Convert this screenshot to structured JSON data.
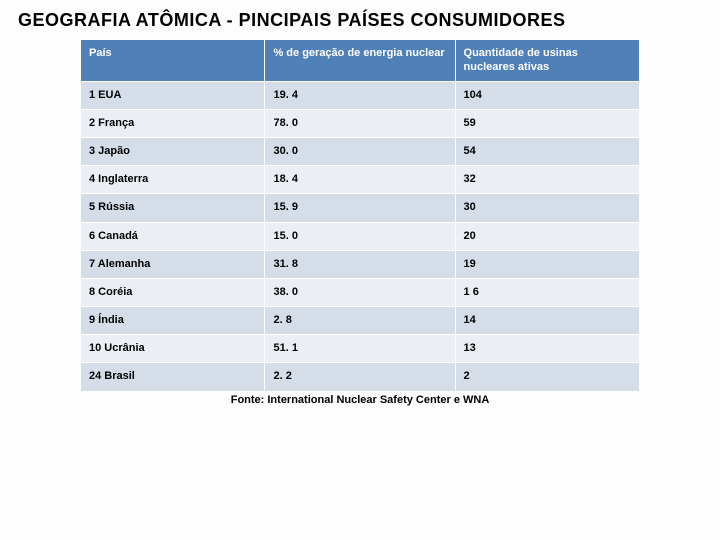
{
  "title": "GEOGRAFIA  ATÔMICA  -  PINCIPAIS  PAÍSES  CONSUMIDORES",
  "table": {
    "columns": [
      "País",
      "% de geração de energia nuclear",
      "Quantidade de usinas nucleares ativas"
    ],
    "rows": [
      [
        "1 EUA",
        "19. 4",
        "104"
      ],
      [
        "2 França",
        "78. 0",
        "59"
      ],
      [
        "3 Japão",
        "30. 0",
        "54"
      ],
      [
        "4 Inglaterra",
        "18. 4",
        "32"
      ],
      [
        "5 Rússia",
        "15. 9",
        "30"
      ],
      [
        "6 Canadá",
        "15. 0",
        "20"
      ],
      [
        "7 Alemanha",
        "31. 8",
        "19"
      ],
      [
        "8 Coréia",
        "38. 0",
        "1   6"
      ],
      [
        "9 Índia",
        "2. 8",
        "14"
      ],
      [
        "10 Ucrânia",
        "51. 1",
        "13"
      ],
      [
        "24 Brasil",
        "2. 2",
        "2"
      ]
    ],
    "header_bg": "#5080b8",
    "header_fg": "#ffffff",
    "row_alt_bg": [
      "#d4dde8",
      "#ebeff5"
    ],
    "border_color": "#ffffff",
    "font_size_header": 11,
    "font_size_cell": 11,
    "font_weight": "bold",
    "column_widths_pct": [
      33,
      34,
      33
    ]
  },
  "source": "Fonte: International Nuclear Safety Center e WNA"
}
